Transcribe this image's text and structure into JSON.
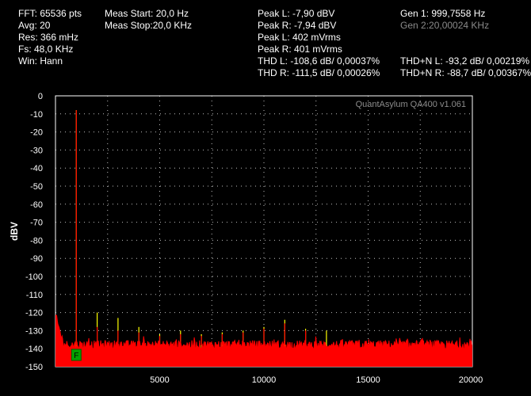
{
  "header": {
    "col1": [
      "FFT: 65536 pts",
      "Avg: 20",
      "Res: 366 mHz",
      "Fs: 48,0 KHz",
      "Win: Hann"
    ],
    "col2": [
      "Meas Start: 20,0 Hz",
      "Meas Stop:20,0 KHz"
    ],
    "col3": [
      "Peak L: -7,90 dBV",
      "Peak R: -7,94 dBV",
      "Peak L: 402 mVrms",
      "Peak R: 401 mVrms",
      "THD L: -108,6 dB/ 0,00037%",
      "THD R: -111,5 dB/ 0,00026%"
    ],
    "col4": [
      "Gen 1: 999,7558 Hz",
      "Gen 2:20,00024 KHz"
    ],
    "col5": [
      "THD+N L: -93,2 dB/ 0,00219%",
      "THD+N R: -88,7 dB/ 0,00367%"
    ]
  },
  "watermark": "QuantAsylum QA400 v1.061",
  "marker_label": "F",
  "colors": {
    "left": "#ffff00",
    "right": "#ff0000",
    "grid": "#ffffff",
    "marker": "#00a000"
  },
  "chart_data": {
    "type": "line",
    "title": "",
    "xlabel": "",
    "ylabel": "dBV",
    "xlim": [
      0,
      20000
    ],
    "ylim": [
      -150,
      0
    ],
    "x_ticks": [
      5000,
      10000,
      15000,
      20000
    ],
    "y_ticks": [
      0,
      -10,
      -20,
      -30,
      -40,
      -50,
      -60,
      -70,
      -80,
      -90,
      -100,
      -110,
      -120,
      -130,
      -140,
      -150
    ],
    "grid": true,
    "series": [
      {
        "channel": "left",
        "color": "#ffff00",
        "noise_floor_dbv": -145,
        "peaks": [
          [
            1000,
            -7.9
          ],
          [
            2000,
            -120
          ],
          [
            3000,
            -123
          ],
          [
            4000,
            -128
          ],
          [
            5000,
            -132
          ],
          [
            6000,
            -130
          ],
          [
            7000,
            -132
          ],
          [
            8000,
            -131
          ],
          [
            9000,
            -130
          ],
          [
            10000,
            -128
          ],
          [
            11000,
            -124
          ],
          [
            12000,
            -129
          ],
          [
            13000,
            -130
          ]
        ]
      },
      {
        "channel": "right",
        "color": "#ff0000",
        "noise_floor_dbv": -138,
        "peaks": [
          [
            1000,
            -7.94
          ],
          [
            2000,
            -128
          ],
          [
            3000,
            -130
          ],
          [
            4000,
            -131
          ],
          [
            5000,
            -133
          ],
          [
            6000,
            -132
          ],
          [
            7000,
            -133
          ],
          [
            8000,
            -132
          ],
          [
            9000,
            -131
          ],
          [
            10000,
            -129
          ],
          [
            11000,
            -126
          ],
          [
            12000,
            -130
          ]
        ]
      }
    ],
    "marker": {
      "x": 1000,
      "y": -143
    }
  }
}
